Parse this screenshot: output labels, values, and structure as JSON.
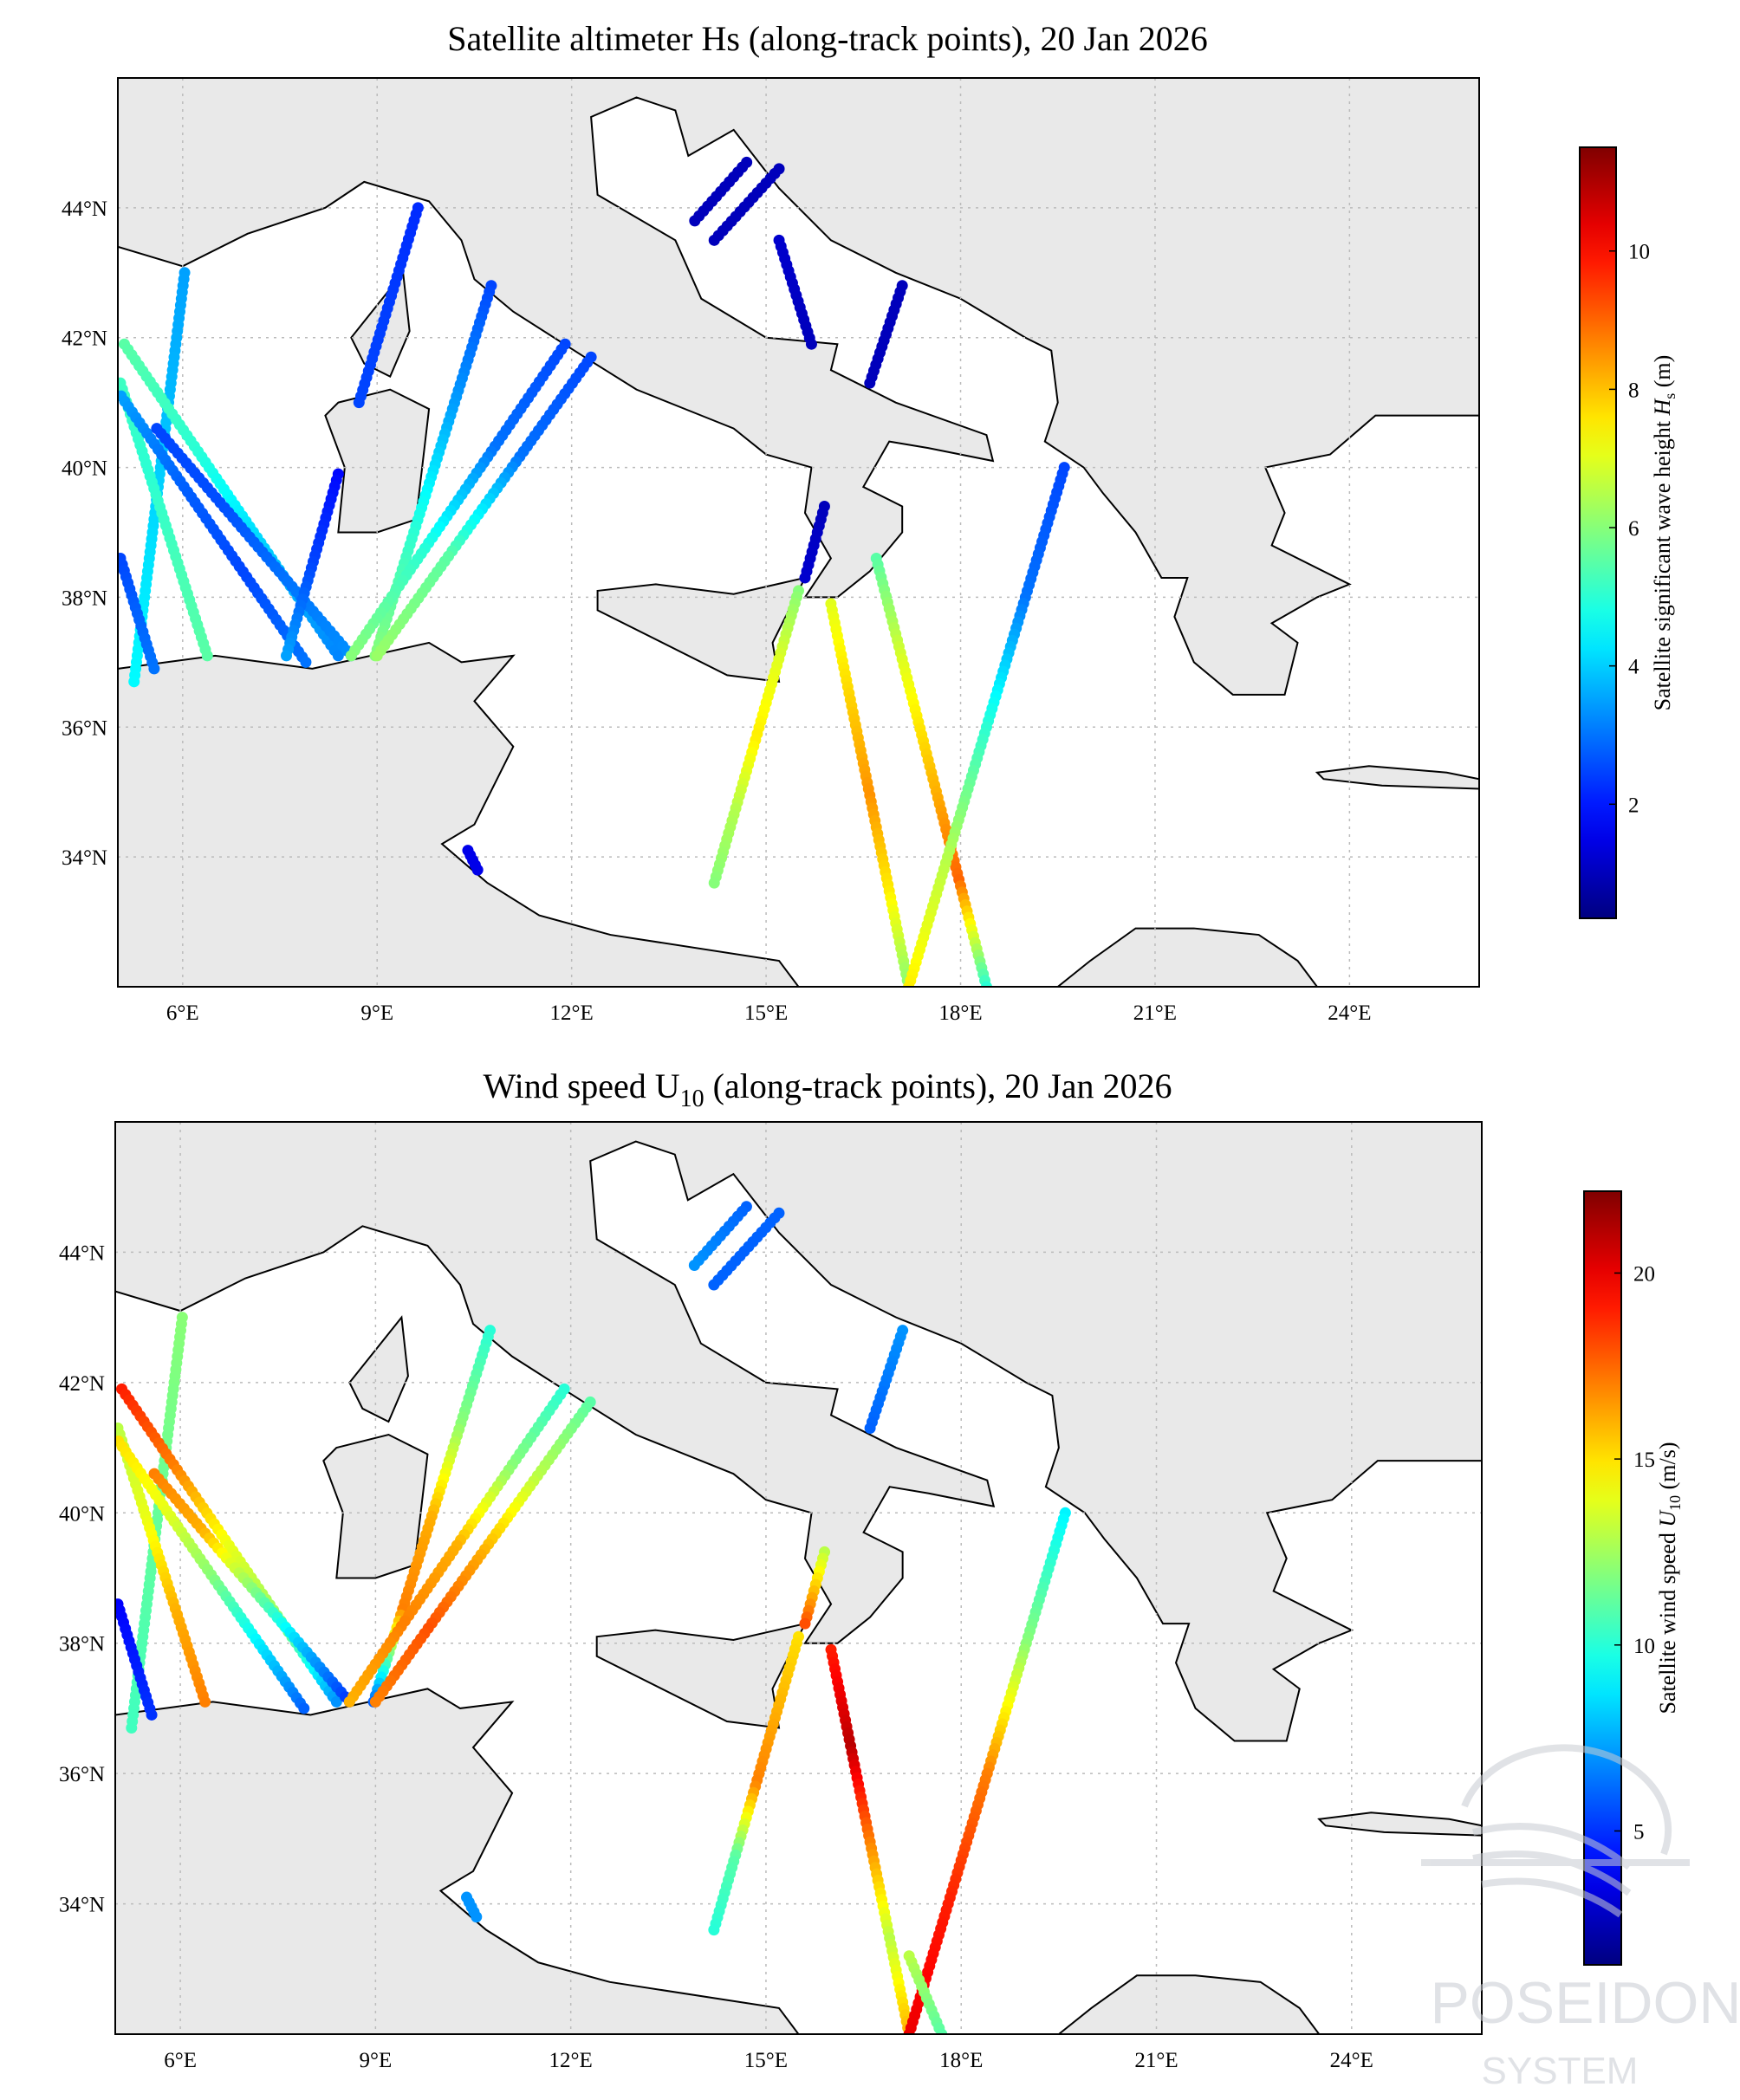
{
  "chart_data": [
    {
      "type": "scatter",
      "title": "Satellite altimeter Hs (along-track points), 20 Jan 2026",
      "variable": "hs",
      "xlim": [
        5,
        26
      ],
      "ylim": [
        32,
        46
      ],
      "xticks": [
        "6°E",
        "9°E",
        "12°E",
        "15°E",
        "18°E",
        "21°E",
        "24°E"
      ],
      "xtick_values": [
        6,
        9,
        12,
        15,
        18,
        21,
        24
      ],
      "yticks": [
        "34°N",
        "36°N",
        "38°N",
        "40°N",
        "42°N",
        "44°N"
      ],
      "ytick_values": [
        34,
        36,
        38,
        40,
        42,
        44
      ],
      "grid": true,
      "colorbar": {
        "label": "Satellite significant wave height H_s (m)",
        "label_main": "Satellite significant wave height ",
        "label_sym": "H",
        "label_sub": "s",
        "label_unit": " (m)",
        "range": [
          0.35,
          11.5
        ],
        "ticks": [
          "2",
          "4",
          "6",
          "8",
          "10"
        ],
        "tick_values": [
          2,
          4,
          6,
          8,
          10
        ],
        "colormap": "jet"
      }
    },
    {
      "type": "scatter",
      "title": "Wind speed U10 (along-track points), 20 Jan 2026",
      "title_main": "Wind speed U",
      "title_sub": "10",
      "title_rest": " (along-track points), 20 Jan 2026",
      "variable": "u10",
      "xlim": [
        5,
        26
      ],
      "ylim": [
        32,
        46
      ],
      "xticks": [
        "6°E",
        "9°E",
        "12°E",
        "15°E",
        "18°E",
        "21°E",
        "24°E"
      ],
      "xtick_values": [
        6,
        9,
        12,
        15,
        18,
        21,
        24
      ],
      "yticks": [
        "34°N",
        "36°N",
        "38°N",
        "40°N",
        "42°N",
        "44°N"
      ],
      "ytick_values": [
        34,
        36,
        38,
        40,
        42,
        44
      ],
      "grid": true,
      "colorbar": {
        "label": "Satellite wind speed U10 (m/s)",
        "label_main": "Satellite wind speed ",
        "label_sym": "U",
        "label_sub": "10",
        "label_unit": " (m/s)",
        "range": [
          1.4,
          22.2
        ],
        "ticks": [
          "5",
          "10",
          "15",
          "20"
        ],
        "tick_values": [
          5,
          10,
          15,
          20
        ],
        "colormap": "jet"
      }
    }
  ],
  "tracks": [
    {
      "start": [
        6.03,
        43.0
      ],
      "end": [
        5.25,
        36.7
      ],
      "hs": [
        3.5,
        3.8,
        4.2,
        4.5
      ],
      "u10": [
        12,
        11.5,
        11,
        10.5
      ]
    },
    {
      "start": [
        5.04,
        41.3
      ],
      "end": [
        6.38,
        37.1
      ],
      "hs": [
        5.2,
        5.0,
        5.3,
        5.5
      ],
      "u10": [
        13,
        14,
        16,
        17
      ]
    },
    {
      "start": [
        5.1,
        41.9
      ],
      "end": [
        8.4,
        37.1
      ],
      "hs": [
        5.5,
        5.0,
        4.0,
        3.2
      ],
      "u10": [
        19,
        17,
        14,
        12,
        7
      ]
    },
    {
      "start": [
        5.05,
        41.1
      ],
      "end": [
        7.9,
        37.0
      ],
      "hs": [
        3.5,
        2.8,
        2.5,
        3.0
      ],
      "u10": [
        15,
        14,
        12,
        9,
        6
      ]
    },
    {
      "start": [
        5.6,
        40.6
      ],
      "end": [
        8.6,
        37.1
      ],
      "hs": [
        2.5,
        2.6,
        3.0,
        3.3
      ],
      "u10": [
        17,
        16,
        12,
        8,
        5
      ]
    },
    {
      "start": [
        5.04,
        38.6
      ],
      "end": [
        5.56,
        36.9
      ],
      "hs": [
        2.5,
        2.8,
        3.0
      ],
      "u10": [
        4,
        4.5,
        5
      ]
    },
    {
      "start": [
        9.63,
        44.0
      ],
      "end": [
        8.72,
        41.0
      ],
      "hs": [
        2.2,
        2.4,
        2.5
      ],
      "u10": null
    },
    {
      "start": [
        8.4,
        39.9
      ],
      "end": [
        7.6,
        37.1
      ],
      "hs": [
        1.8,
        2.5,
        3.5
      ],
      "u10": null
    },
    {
      "start": [
        10.76,
        42.8
      ],
      "end": [
        8.97,
        37.1
      ],
      "hs": [
        2.5,
        3.5,
        5.0,
        6.0
      ],
      "u10": [
        10,
        12,
        16,
        17,
        6
      ]
    },
    {
      "start": [
        11.9,
        41.9
      ],
      "end": [
        8.6,
        37.1
      ],
      "hs": [
        2.5,
        3.0,
        5.0,
        6.0
      ],
      "u10": [
        10,
        12,
        16,
        17,
        16
      ]
    },
    {
      "start": [
        12.3,
        41.7
      ],
      "end": [
        9.0,
        37.1
      ],
      "hs": [
        2.5,
        3.0,
        5.5,
        6.2
      ],
      "u10": [
        11,
        13,
        16,
        18,
        17
      ]
    },
    {
      "start": [
        14.7,
        44.7
      ],
      "end": [
        13.9,
        43.8
      ],
      "hs": [
        1.0,
        1.0
      ],
      "u10": [
        6,
        7
      ]
    },
    {
      "start": [
        15.2,
        44.6
      ],
      "end": [
        14.2,
        43.5
      ],
      "hs": [
        1.0,
        1.0
      ],
      "u10": [
        6,
        6
      ]
    },
    {
      "start": [
        15.2,
        43.5
      ],
      "end": [
        15.7,
        41.9
      ],
      "hs": [
        1.2,
        1.0
      ],
      "u10": null
    },
    {
      "start": [
        17.1,
        42.8
      ],
      "end": [
        16.6,
        41.3
      ],
      "hs": [
        1.0,
        1.0
      ],
      "u10": [
        7,
        6
      ]
    },
    {
      "start": [
        15.9,
        39.4
      ],
      "end": [
        15.6,
        38.3
      ],
      "hs": [
        1.0,
        1.2
      ],
      "u10": [
        13,
        18
      ]
    },
    {
      "start": [
        15.5,
        38.1
      ],
      "end": [
        14.2,
        33.6
      ],
      "hs": [
        6.0,
        7.0,
        7.5,
        6.5,
        6.0
      ],
      "u10": [
        15,
        16,
        17,
        11,
        10
      ]
    },
    {
      "start": [
        16.0,
        37.9
      ],
      "end": [
        17.2,
        32.0
      ],
      "hs": [
        7.0,
        7.8,
        8.5,
        7.5,
        6.0
      ],
      "u10": [
        19,
        21,
        17,
        13,
        16
      ]
    },
    {
      "start": [
        16.7,
        38.6
      ],
      "end": [
        18.4,
        32.0
      ],
      "hs": [
        5.5,
        7.0,
        8.0,
        9.0,
        5.0
      ],
      "u10": null
    },
    {
      "start": [
        19.6,
        40.0
      ],
      "end": [
        17.2,
        32.0
      ],
      "hs": [
        2.5,
        3.0,
        5.0,
        6.5,
        7.5
      ],
      "u10": [
        9,
        12,
        17,
        19,
        20
      ]
    },
    {
      "start": [
        17.2,
        33.2
      ],
      "end": [
        17.7,
        32.0
      ],
      "hs": null,
      "u10": [
        13,
        11
      ]
    },
    {
      "start": [
        10.4,
        34.1
      ],
      "end": [
        10.55,
        33.8
      ],
      "hs": [
        1.5,
        1.5
      ],
      "u10": [
        7,
        7
      ]
    }
  ],
  "watermark": {
    "line1": "POSEIDON",
    "line2": "SYSTEM"
  }
}
